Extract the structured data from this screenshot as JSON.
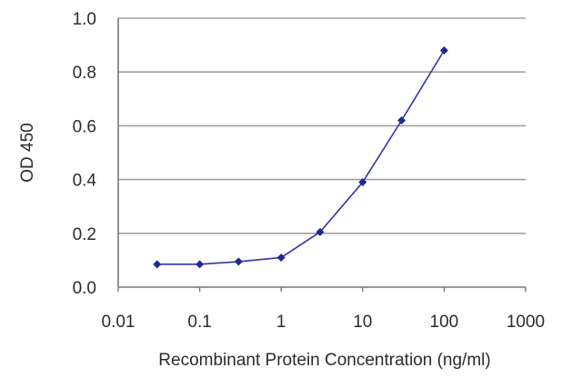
{
  "chart_data": {
    "type": "line",
    "title": "",
    "xlabel": "Recombinant Protein Concentration (ng/ml)",
    "ylabel": "OD 450",
    "x_scale": "log",
    "xlim": [
      0.01,
      1000
    ],
    "ylim": [
      0.0,
      1.0
    ],
    "x_ticks": [
      0.01,
      0.1,
      1,
      10,
      100,
      1000
    ],
    "x_tick_labels": [
      "0.01",
      "0.1",
      "1",
      "10",
      "100",
      "1000"
    ],
    "y_ticks": [
      0.0,
      0.2,
      0.4,
      0.6,
      0.8,
      1.0
    ],
    "y_tick_labels": [
      "0.0",
      "0.2",
      "0.4",
      "0.6",
      "0.8",
      "1.0"
    ],
    "grid": "horizontal",
    "legend": "none",
    "line_color": "#3333a8",
    "marker_color": "#1f2a8f",
    "gridline_color": "#a0a0a0",
    "axis_color": "#777777",
    "series": [
      {
        "x": [
          0.03,
          0.1,
          0.3,
          1,
          3,
          10,
          30,
          100
        ],
        "y": [
          0.085,
          0.085,
          0.095,
          0.11,
          0.205,
          0.39,
          0.62,
          0.88
        ]
      }
    ]
  }
}
